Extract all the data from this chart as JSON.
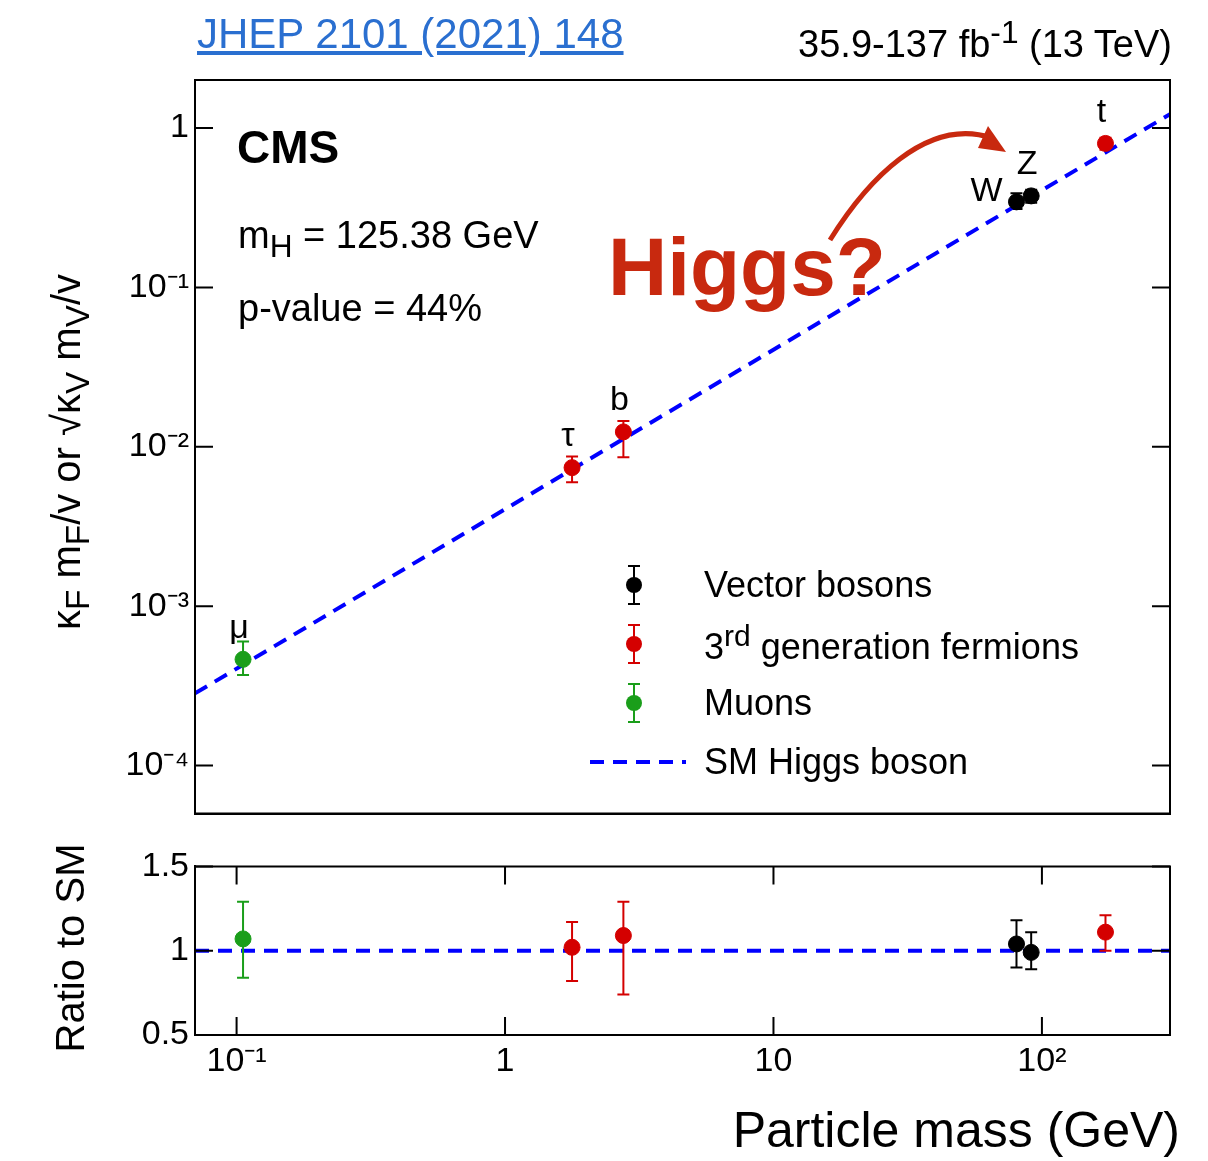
{
  "chart_data": [
    {
      "type": "scatter",
      "title": "JHEP 2101 (2021) 148",
      "subtitle": "35.9-137 fb$^{-1}$ (13 TeV)",
      "ylabel": "κ$_{F}$ m$_{F}$/v or √κ$_{V}$ m$_{V}$/v",
      "log": "xy",
      "xlim": [
        0.07,
        300
      ],
      "ylim": [
        5e-05,
        2
      ],
      "yticks": [
        {
          "value": 0.0001,
          "label": "10⁻⁴"
        },
        {
          "value": 0.001,
          "label": "10⁻³"
        },
        {
          "value": 0.01,
          "label": "10⁻²"
        },
        {
          "value": 0.1,
          "label": "10⁻¹"
        },
        1
      ],
      "tick_labels": "y",
      "legend": "bottom right",
      "marker": "circle",
      "series": [
        {
          "name": "Vector bosons",
          "color": "#000000",
          "x": [
            80.4,
            91.2
          ],
          "values": [
            0.344,
            0.375
          ],
          "errors": [
            [
              0.31,
              0.39
            ],
            [
              0.34,
              0.41
            ]
          ]
        },
        {
          "name": "3$^{rd}$ generation fermions",
          "color": "#d40000",
          "x": [
            1.777,
            2.76,
            172.5
          ],
          "values": [
            0.0074,
            0.0124,
            0.8
          ],
          "errors": [
            [
              0.006,
              0.0087
            ],
            [
              0.0086,
              0.0145
            ],
            [
              0.73,
              0.87
            ]
          ]
        },
        {
          "name": "Muons",
          "color": "#1a9e1a",
          "x": [
            0.1057
          ],
          "values": [
            0.000464
          ],
          "errors": [
            [
              0.00037,
              0.0006
            ]
          ]
        },
        {
          "name": "SM Higgs boson",
          "type": "line",
          "line_style": "dashed",
          "marker": "none",
          "color": "#0000ff",
          "x": [
            0.07,
            300
          ],
          "values": [
            0.000284,
            1.22
          ]
        }
      ],
      "annotations": [
        "CMS",
        "m$_{H}$ = 125.38 GeV",
        "p-value = 44%",
        "Higgs?",
        {
          "text": "μ",
          "x": 0.1057,
          "y": 0.000464
        },
        {
          "text": "τ",
          "x": 1.777,
          "y": 0.0074
        },
        {
          "text": "b",
          "x": 2.76,
          "y": 0.0124
        },
        {
          "text": "W",
          "x": 80.4,
          "y": 0.344
        },
        {
          "text": "Z",
          "x": 91.2,
          "y": 0.375
        },
        {
          "text": "t",
          "x": 172.5,
          "y": 0.8
        }
      ]
    },
    {
      "type": "scatter",
      "xlabel": "Particle mass (GeV)",
      "ylabel": "Ratio to SM",
      "log": "x",
      "xlim": [
        0.07,
        300
      ],
      "ylim": [
        0.5,
        1.5
      ],
      "xticks": [
        {
          "value": 0.1,
          "label": "10⁻¹"
        },
        1,
        10,
        {
          "value": 100,
          "label": "10²"
        }
      ],
      "yticks": [
        0.5,
        1,
        1.5
      ],
      "marker": "circle",
      "ref_lines": [
        {
          "axis": "y",
          "value": 1,
          "color": "#0000ff",
          "line_style": "dashed"
        }
      ],
      "series": [
        {
          "color": "#1a9e1a",
          "x": [
            0.1057
          ],
          "values": [
            1.07
          ],
          "errors": [
            [
              0.84,
              1.29
            ]
          ]
        },
        {
          "color": "#d40000",
          "x": [
            1.777,
            2.76,
            172.5
          ],
          "values": [
            1.02,
            1.09,
            1.11
          ],
          "errors": [
            [
              0.82,
              1.17
            ],
            [
              0.74,
              1.29
            ],
            [
              1.0,
              1.21
            ]
          ]
        },
        {
          "color": "#000000",
          "x": [
            80.4,
            91.2
          ],
          "values": [
            1.04,
            0.99
          ],
          "errors": [
            [
              0.9,
              1.18
            ],
            [
              0.89,
              1.11
            ]
          ]
        }
      ]
    }
  ]
}
